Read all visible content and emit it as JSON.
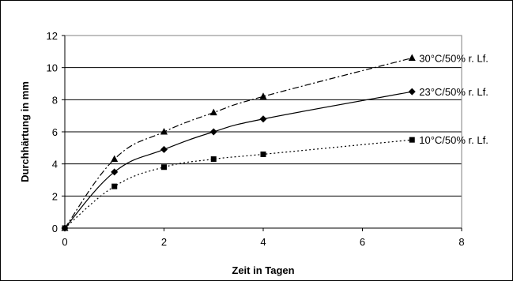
{
  "chart_data": {
    "type": "line",
    "xlabel": "Zeit in Tagen",
    "ylabel": "Durchhärtung in mm",
    "xlim": [
      0,
      8
    ],
    "ylim": [
      0,
      12
    ],
    "xticks": [
      "0",
      "2",
      "4",
      "6",
      "8"
    ],
    "yticks": [
      "0",
      "2",
      "4",
      "6",
      "8",
      "10",
      "12"
    ],
    "grid": "horizontal",
    "series": [
      {
        "name": "30°C/50% r. Lf.",
        "marker": "triangle",
        "linestyle": "dash-dot",
        "x": [
          0,
          1,
          2,
          3,
          4,
          7
        ],
        "y": [
          0,
          4.3,
          6.0,
          7.2,
          8.2,
          10.6
        ]
      },
      {
        "name": "23°C/50% r. Lf.",
        "marker": "diamond",
        "linestyle": "solid",
        "x": [
          0,
          1,
          2,
          3,
          4,
          7
        ],
        "y": [
          0,
          3.5,
          4.9,
          6.0,
          6.8,
          8.5
        ]
      },
      {
        "name": "10°C/50% r. Lf.",
        "marker": "square",
        "linestyle": "dotted",
        "x": [
          0,
          1,
          2,
          3,
          4,
          7
        ],
        "y": [
          0,
          2.6,
          3.8,
          4.3,
          4.6,
          5.5
        ]
      }
    ]
  }
}
